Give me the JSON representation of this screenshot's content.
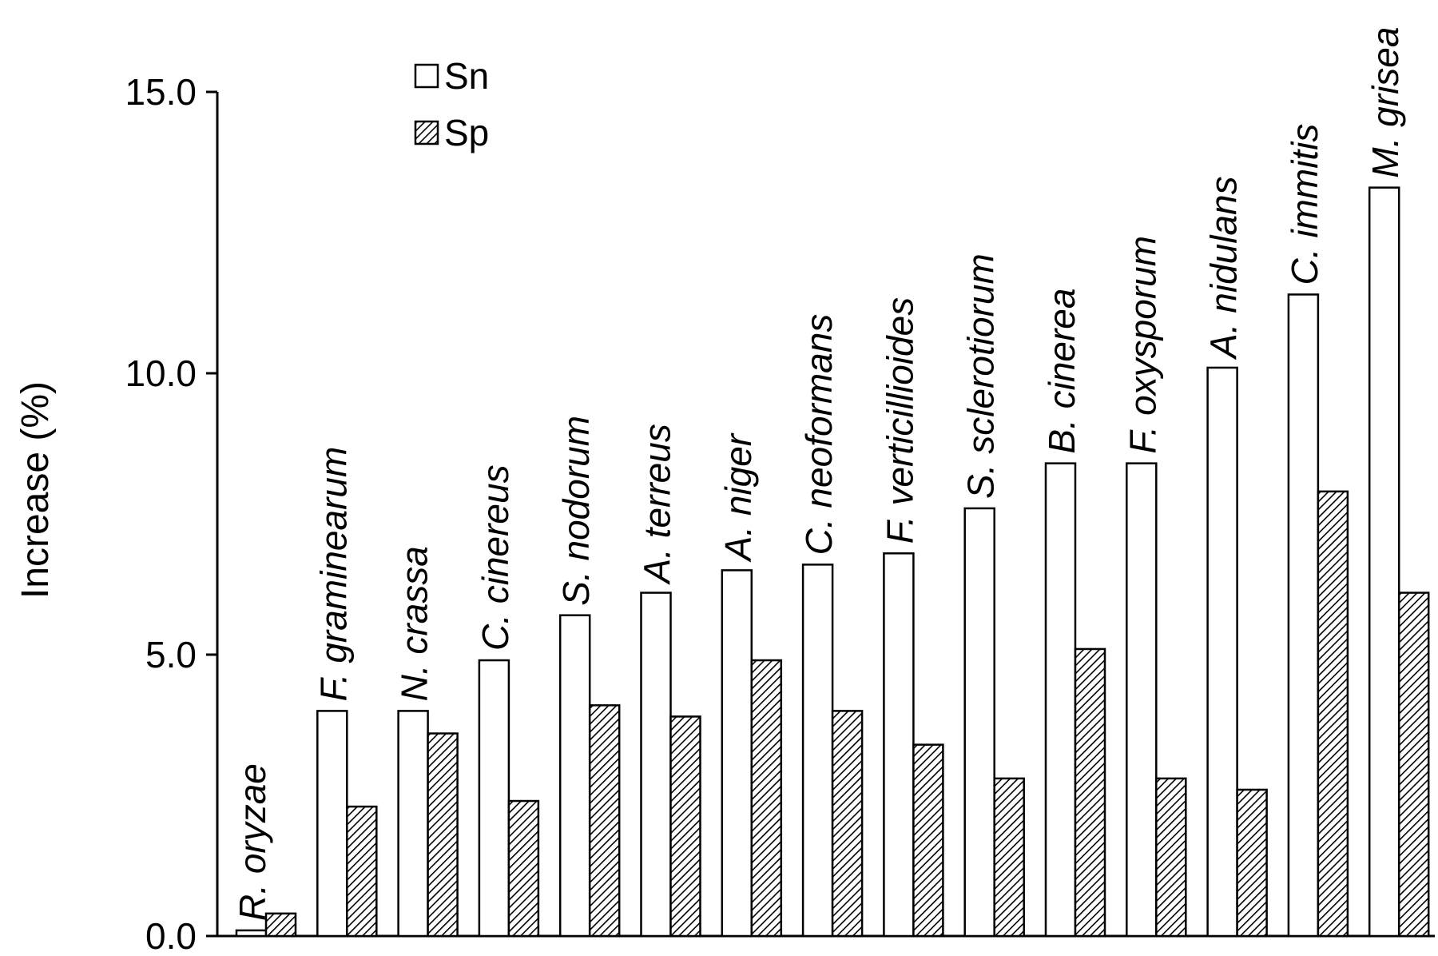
{
  "chart_data": {
    "type": "bar",
    "title": "",
    "xlabel": "",
    "ylabel": "Increase (%)",
    "ylim": [
      0,
      15
    ],
    "yticks": [
      "0.0",
      "5.0",
      "10.0",
      "15.0"
    ],
    "grid": false,
    "legend_position": "top-left",
    "categories": [
      "R. oryzae",
      "F. graminearum",
      "N. crassa",
      "C. cinereus",
      "S. nodorum",
      "A. terreus",
      "A. niger",
      "C. neoformans",
      "F. verticillioides",
      "S. sclerotiorum",
      "B. cinerea",
      "F. oxysporum",
      "A. nidulans",
      "C. immitis",
      "M. grisea"
    ],
    "series": [
      {
        "name": "Sn",
        "pattern": "open",
        "values": [
          0.1,
          4.0,
          4.0,
          4.9,
          5.7,
          6.1,
          6.5,
          6.6,
          6.8,
          7.6,
          8.4,
          8.4,
          10.1,
          11.4,
          13.3
        ]
      },
      {
        "name": "Sp",
        "pattern": "hatched",
        "values": [
          0.4,
          2.3,
          3.6,
          2.4,
          4.1,
          3.9,
          4.9,
          4.0,
          3.4,
          2.8,
          5.1,
          2.8,
          2.6,
          7.9,
          6.1
        ]
      }
    ]
  },
  "colors": {
    "ink": "#000000",
    "open_fill": "#ffffff",
    "hatch_background": "#ffffff"
  }
}
